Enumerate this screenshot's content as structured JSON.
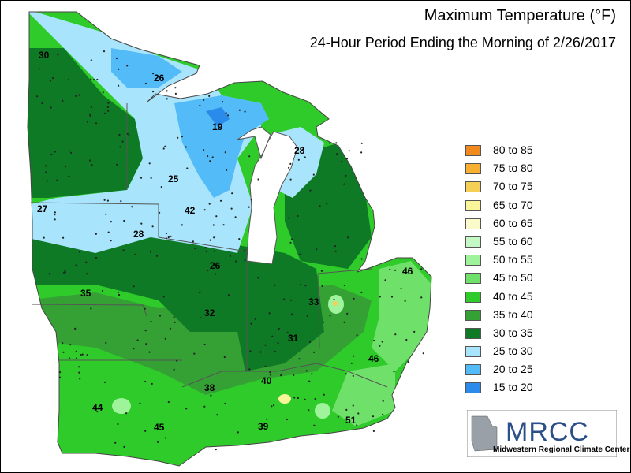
{
  "title": "Maximum Temperature (°F)",
  "subtitle": "24-Hour Period Ending the Morning of 2/26/2017",
  "legend": [
    {
      "label": "80 to 85",
      "color": "#f08a1e"
    },
    {
      "label": "75 to 80",
      "color": "#f8b030"
    },
    {
      "label": "70 to 75",
      "color": "#f5d055"
    },
    {
      "label": "65 to 70",
      "color": "#fbf59a"
    },
    {
      "label": "60 to 65",
      "color": "#fbfbc9"
    },
    {
      "label": "55 to 60",
      "color": "#c5f9c3"
    },
    {
      "label": "50 to 55",
      "color": "#9ff39b"
    },
    {
      "label": "45 to 50",
      "color": "#6fe06a"
    },
    {
      "label": "40 to 45",
      "color": "#2ecb2a"
    },
    {
      "label": "35 to 40",
      "color": "#35a135"
    },
    {
      "label": "30 to 35",
      "color": "#0f7a25"
    },
    {
      "label": "25 to 30",
      "color": "#a8e5fd"
    },
    {
      "label": "20 to 25",
      "color": "#53bbf8"
    },
    {
      "label": "15 to 20",
      "color": "#2a8bea"
    }
  ],
  "station_values": [
    "30",
    "26",
    "19",
    "28",
    "25",
    "42",
    "27",
    "28",
    "26",
    "35",
    "32",
    "33",
    "46",
    "31",
    "46",
    "44",
    "38",
    "40",
    "45",
    "39",
    "51"
  ],
  "logo": {
    "text": "MRCC",
    "subtext": "Midwestern Regional Climate Center"
  }
}
